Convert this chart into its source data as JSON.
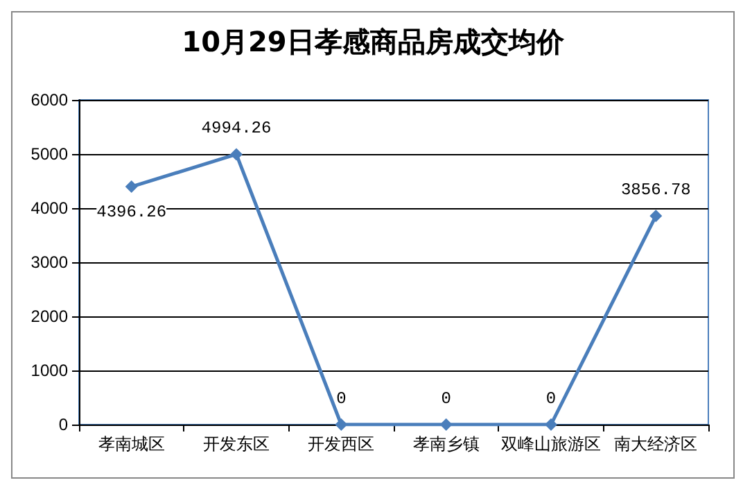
{
  "chart_data": {
    "type": "line",
    "title": "10月29日孝感商品房成交均价",
    "categories": [
      "孝南城区",
      "开发东区",
      "开发西区",
      "孝南乡镇",
      "双峰山旅游区",
      "南大经济区"
    ],
    "values": [
      4396.26,
      4994.26,
      0,
      0,
      0,
      3856.78
    ],
    "color": "#4a7ebb",
    "ylim": [
      0,
      6000
    ],
    "yticks": [
      0,
      1000,
      2000,
      3000,
      4000,
      5000,
      6000
    ],
    "grid": "y",
    "marker": "diamond",
    "line_style": "solid",
    "data_labels": true
  }
}
